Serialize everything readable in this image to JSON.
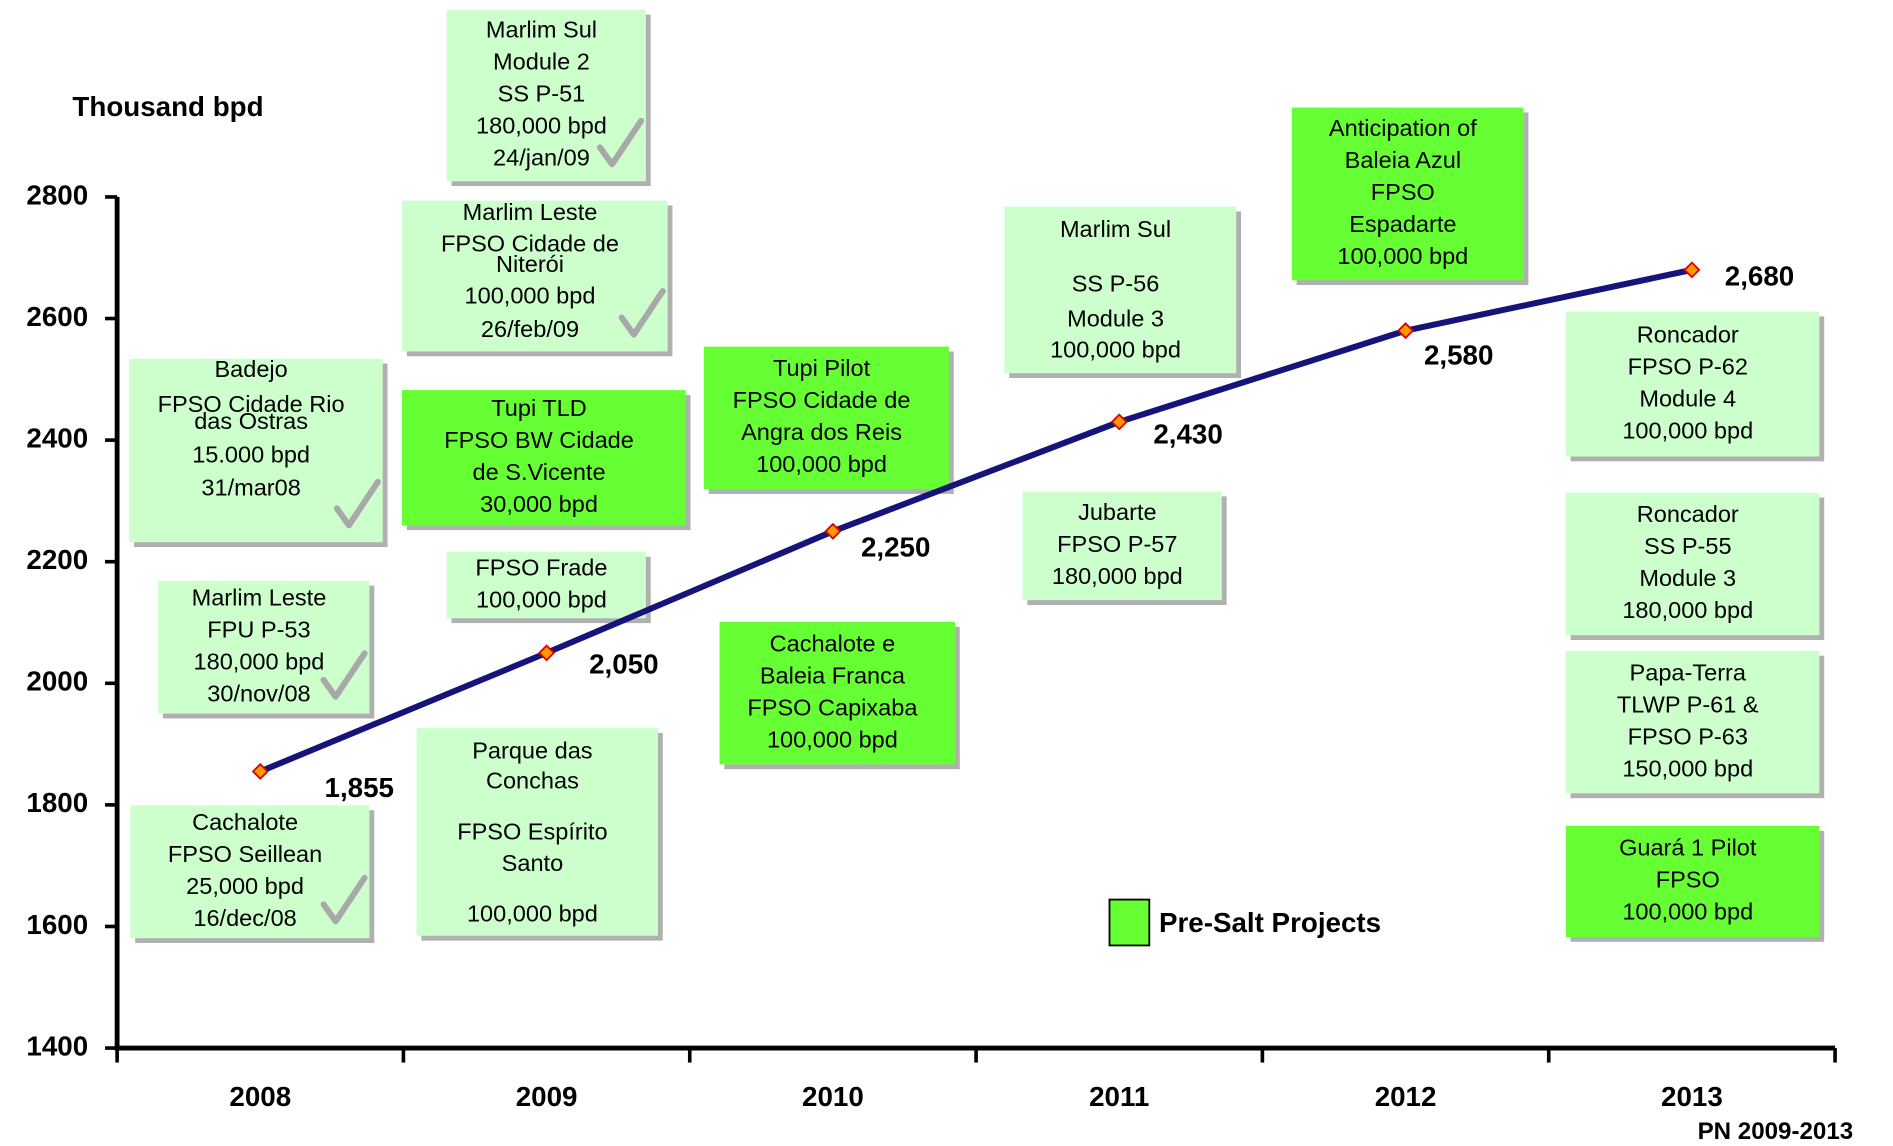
{
  "chart_data": {
    "type": "line",
    "y_label": "Thousand bpd",
    "footnote": "PN 2009-2013",
    "categories": [
      "2008",
      "2009",
      "2010",
      "2011",
      "2012",
      "2013"
    ],
    "values": [
      1855,
      2050,
      2250,
      2430,
      2580,
      2680
    ],
    "value_labels": [
      "1,855",
      "2,050",
      "2,250",
      "2,430",
      "2,580",
      "2,680"
    ],
    "color": "#14147a",
    "marker_color": "#ff9900",
    "ylim": [
      1400,
      2800
    ],
    "yticks": [
      1400,
      1600,
      1800,
      2000,
      2200,
      2400,
      2600,
      2800
    ],
    "legend": {
      "label": "Pre-Salt Projects",
      "color": "#66ff33"
    },
    "annotations": [
      {
        "lines": [
          "Marlim Sul",
          "Module 2",
          "SS P-51",
          "180,000 bpd",
          "24/jan/09"
        ],
        "color": "#ccffcc",
        "checked": true
      },
      {
        "lines": [
          "Marlim Leste",
          "FPSO Cidade de",
          "Niterói",
          "100,000 bpd",
          "26/feb/09"
        ],
        "color": "#ccffcc",
        "checked": true
      },
      {
        "lines": [
          "Badejo",
          "FPSO Cidade Rio",
          "das Ostras",
          "15.000 bpd",
          "31/mar08"
        ],
        "color": "#ccffcc",
        "checked": true
      },
      {
        "lines": [
          "Tupi TLD",
          "FPSO BW Cidade",
          "de S.Vicente",
          "30,000 bpd"
        ],
        "color": "#66ff33",
        "checked": false
      },
      {
        "lines": [
          "FPSO Frade",
          "100,000 bpd"
        ],
        "color": "#ccffcc",
        "checked": false
      },
      {
        "lines": [
          "Marlim Leste",
          "FPU P-53",
          "180,000 bpd",
          "30/nov/08"
        ],
        "color": "#ccffcc",
        "checked": true
      },
      {
        "lines": [
          "Cachalote",
          "FPSO Seillean",
          "25,000 bpd",
          "16/dec/08"
        ],
        "color": "#ccffcc",
        "checked": true
      },
      {
        "lines": [
          "Parque das",
          "Conchas",
          "FPSO Espírito",
          "Santo",
          "100,000 bpd"
        ],
        "color": "#ccffcc",
        "checked": false
      },
      {
        "lines": [
          "Tupi Pilot",
          "FPSO Cidade de",
          "Angra dos Reis",
          "100,000 bpd"
        ],
        "color": "#66ff33",
        "checked": false
      },
      {
        "lines": [
          "Cachalote e",
          "Baleia Franca",
          "FPSO Capixaba",
          "100,000 bpd"
        ],
        "color": "#66ff33",
        "checked": false
      },
      {
        "lines": [
          "Jubarte",
          "FPSO P-57",
          "180,000 bpd"
        ],
        "color": "#ccffcc",
        "checked": false
      },
      {
        "lines": [
          "Marlim Sul",
          "SS  P-56",
          "Module 3",
          "100,000 bpd"
        ],
        "color": "#ccffcc",
        "checked": false
      },
      {
        "lines": [
          "Anticipation of",
          "Baleia Azul",
          "FPSO",
          "Espadarte",
          "100,000 bpd"
        ],
        "color": "#66ff33",
        "checked": false
      },
      {
        "lines": [
          "Roncador",
          "FPSO P-62",
          "Module 4",
          "100,000 bpd"
        ],
        "color": "#ccffcc",
        "checked": false
      },
      {
        "lines": [
          "Roncador",
          "SS P-55",
          "Module 3",
          "180,000 bpd"
        ],
        "color": "#ccffcc",
        "checked": false
      },
      {
        "lines": [
          "Papa-Terra",
          "TLWP P-61 &",
          "FPSO P-63",
          "150,000 bpd"
        ],
        "color": "#ccffcc",
        "checked": false
      },
      {
        "lines": [
          "Guará 1 Pilot",
          "FPSO",
          "100,000 bpd"
        ],
        "color": "#66ff33",
        "checked": false
      }
    ]
  }
}
